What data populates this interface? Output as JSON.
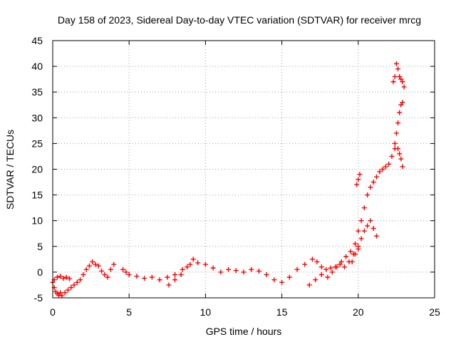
{
  "chart_data": {
    "type": "scatter",
    "title": "Day 158 of 2023, Sidereal Day-to-day VTEC variation (SDTVAR) for receiver mrcg",
    "xlabel": "GPS time / hours",
    "ylabel": "SDTVAR / TECUs",
    "xlim": [
      0,
      25
    ],
    "ylim": [
      -5,
      45
    ],
    "xticks": [
      0,
      5,
      10,
      15,
      20,
      25
    ],
    "yticks": [
      -5,
      0,
      5,
      10,
      15,
      20,
      25,
      30,
      35,
      40,
      45
    ],
    "grid": true,
    "marker": "+",
    "color": "#ff0000",
    "series": [
      {
        "name": "SDTVAR",
        "x": [
          0.0,
          0.1,
          0.2,
          0.3,
          0.4,
          0.5,
          0.6,
          0.8,
          1.0,
          1.2,
          1.4,
          1.6,
          1.8,
          2.0,
          2.2,
          2.4,
          2.6,
          2.8,
          3.0,
          3.2,
          3.4,
          3.6,
          3.8,
          4.0,
          0.1,
          0.3,
          0.5,
          0.7,
          0.9,
          1.1,
          4.6,
          4.8,
          5.0,
          5.5,
          6.0,
          6.5,
          7.0,
          7.5,
          8.0,
          8.5,
          9.0,
          9.5,
          10.0,
          10.5,
          11.0,
          11.5,
          12.0,
          12.5,
          13.0,
          13.5,
          14.0,
          7.6,
          8.0,
          8.4,
          8.8,
          9.2,
          14.5,
          15.0,
          15.5,
          16.0,
          16.5,
          17.0,
          17.3,
          17.6,
          17.9,
          18.2,
          18.5,
          18.8,
          19.1,
          19.4,
          19.7,
          20.0,
          16.8,
          17.2,
          17.6,
          18.0,
          18.3,
          18.6,
          18.9,
          19.2,
          19.5,
          19.8,
          19.6,
          19.8,
          20.0,
          20.2,
          20.4,
          20.6,
          20.8,
          21.0,
          21.2,
          20.0,
          20.2,
          20.4,
          20.6,
          20.8,
          21.0,
          21.2,
          21.4,
          21.6,
          21.8,
          22.0,
          22.2,
          22.4,
          19.9,
          20.0,
          20.1,
          22.3,
          22.4,
          22.5,
          22.6,
          22.7,
          22.8,
          22.9,
          23.0,
          22.4,
          22.5,
          22.6,
          22.7,
          22.8,
          22.9,
          22.6,
          22.7,
          22.8,
          22.9
        ],
        "y": [
          -2.0,
          -3.0,
          -3.8,
          -4.2,
          -4.5,
          -4.0,
          -4.6,
          -4.0,
          -3.5,
          -3.0,
          -2.5,
          -2.0,
          -1.5,
          -0.5,
          0.5,
          1.2,
          2.0,
          1.5,
          1.2,
          0.2,
          -0.5,
          -1.0,
          0.5,
          1.5,
          -1.5,
          -1.0,
          -0.8,
          -1.2,
          -1.0,
          -1.3,
          0.5,
          0.0,
          -0.5,
          -0.8,
          -1.2,
          -1.0,
          -1.5,
          -1.0,
          -0.5,
          0.5,
          1.5,
          1.8,
          1.5,
          0.8,
          0.0,
          0.5,
          0.3,
          0.0,
          0.5,
          0.2,
          -0.5,
          -2.5,
          -1.5,
          -0.5,
          1.0,
          2.5,
          -1.5,
          -2.0,
          -1.0,
          0.5,
          1.5,
          2.5,
          2.0,
          1.0,
          0.5,
          0.8,
          1.0,
          1.5,
          1.0,
          2.0,
          3.5,
          4.5,
          -2.5,
          -1.5,
          -0.5,
          -1.0,
          0.0,
          1.0,
          2.0,
          3.0,
          4.0,
          5.5,
          2.0,
          3.5,
          5.0,
          6.5,
          8.0,
          9.0,
          10.0,
          8.5,
          7.0,
          8.0,
          10.0,
          12.5,
          15.0,
          16.5,
          17.5,
          18.5,
          19.5,
          20.0,
          20.5,
          21.0,
          22.5,
          24.0,
          17.0,
          18.0,
          19.0,
          37.0,
          38.0,
          40.5,
          39.5,
          38.0,
          37.5,
          37.0,
          36.0,
          25.0,
          27.0,
          29.0,
          31.0,
          32.5,
          33.0,
          24.0,
          23.0,
          22.0,
          20.5
        ]
      }
    ]
  }
}
